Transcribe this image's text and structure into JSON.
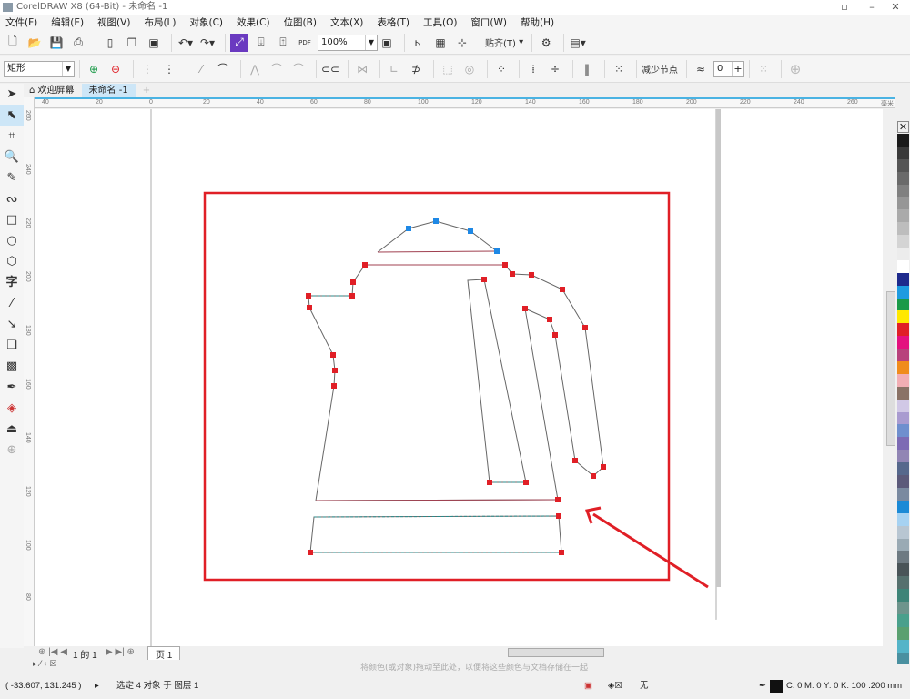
{
  "app": {
    "title": "CorelDRAW X8 (64-Bit) - 未命名 -1"
  },
  "menu": [
    "文件(F)",
    "编辑(E)",
    "视图(V)",
    "布局(L)",
    "对象(C)",
    "效果(C)",
    "位图(B)",
    "文本(X)",
    "表格(T)",
    "工具(O)",
    "窗口(W)",
    "帮助(H)"
  ],
  "toolbar": {
    "zoom": "100%",
    "snap": "贴齐(T)",
    "pdf": "PDF"
  },
  "propbar": {
    "shape": "矩形",
    "reduce_nodes": "减少节点",
    "smoothness": "0"
  },
  "tabs": [
    {
      "label": "欢迎屏幕"
    },
    {
      "label": "未命名 -1",
      "active": true
    }
  ],
  "ruler": {
    "h_ticks": [
      "40",
      "20",
      "0",
      "20",
      "40",
      "60",
      "80",
      "100",
      "120",
      "140",
      "160",
      "180",
      "200",
      "220",
      "240",
      "260"
    ],
    "unit": "毫米",
    "v_ticks": [
      "260",
      "240",
      "220",
      "200",
      "180",
      "160",
      "140",
      "120",
      "100",
      "80"
    ]
  },
  "pages": {
    "current": "1",
    "of": "的",
    "total": "1",
    "tab": "页 1"
  },
  "palette_hint": "将颜色(或对象)拖动至此处，以便将这些颜色与文档存储在一起",
  "palette_colors": [
    "#1a1a1a",
    "#3a3a3a",
    "#555555",
    "#6a6a6a",
    "#808080",
    "#969696",
    "#aaaaaa",
    "#bdbdbd",
    "#d4d4d4",
    "#ececec",
    "#ffffff",
    "#1e2a8c",
    "#1e9be0",
    "#1a9a48",
    "#ffe800",
    "#e01f26",
    "#e4117f",
    "#b8427c",
    "#f08c1c",
    "#f2aeb4",
    "#8a7266",
    "#d1c8e6",
    "#a99bd0",
    "#6f8fce",
    "#7d6bb4",
    "#9185b4",
    "#56688c",
    "#5c5a7a",
    "#7a8aa0",
    "#1b8ad6",
    "#a6d2f2",
    "#b8c6d2",
    "#9aaab4",
    "#6e7a82",
    "#4a5458",
    "#56706e",
    "#3e8478",
    "#6e948c",
    "#4aa08c",
    "#5aa070",
    "#54b4c8",
    "#4a90a0"
  ],
  "status": {
    "coords": "( -33.607, 131.245 )",
    "selection": "选定 4 对象 于 图层 1",
    "fill": "无",
    "outline": "C: 0 M: 0 Y: 0 K: 100  .200 mm"
  },
  "colors": {
    "accent": "#4ab3e3",
    "highlight": "#e01f26",
    "node_selected": "#1e88e5"
  }
}
